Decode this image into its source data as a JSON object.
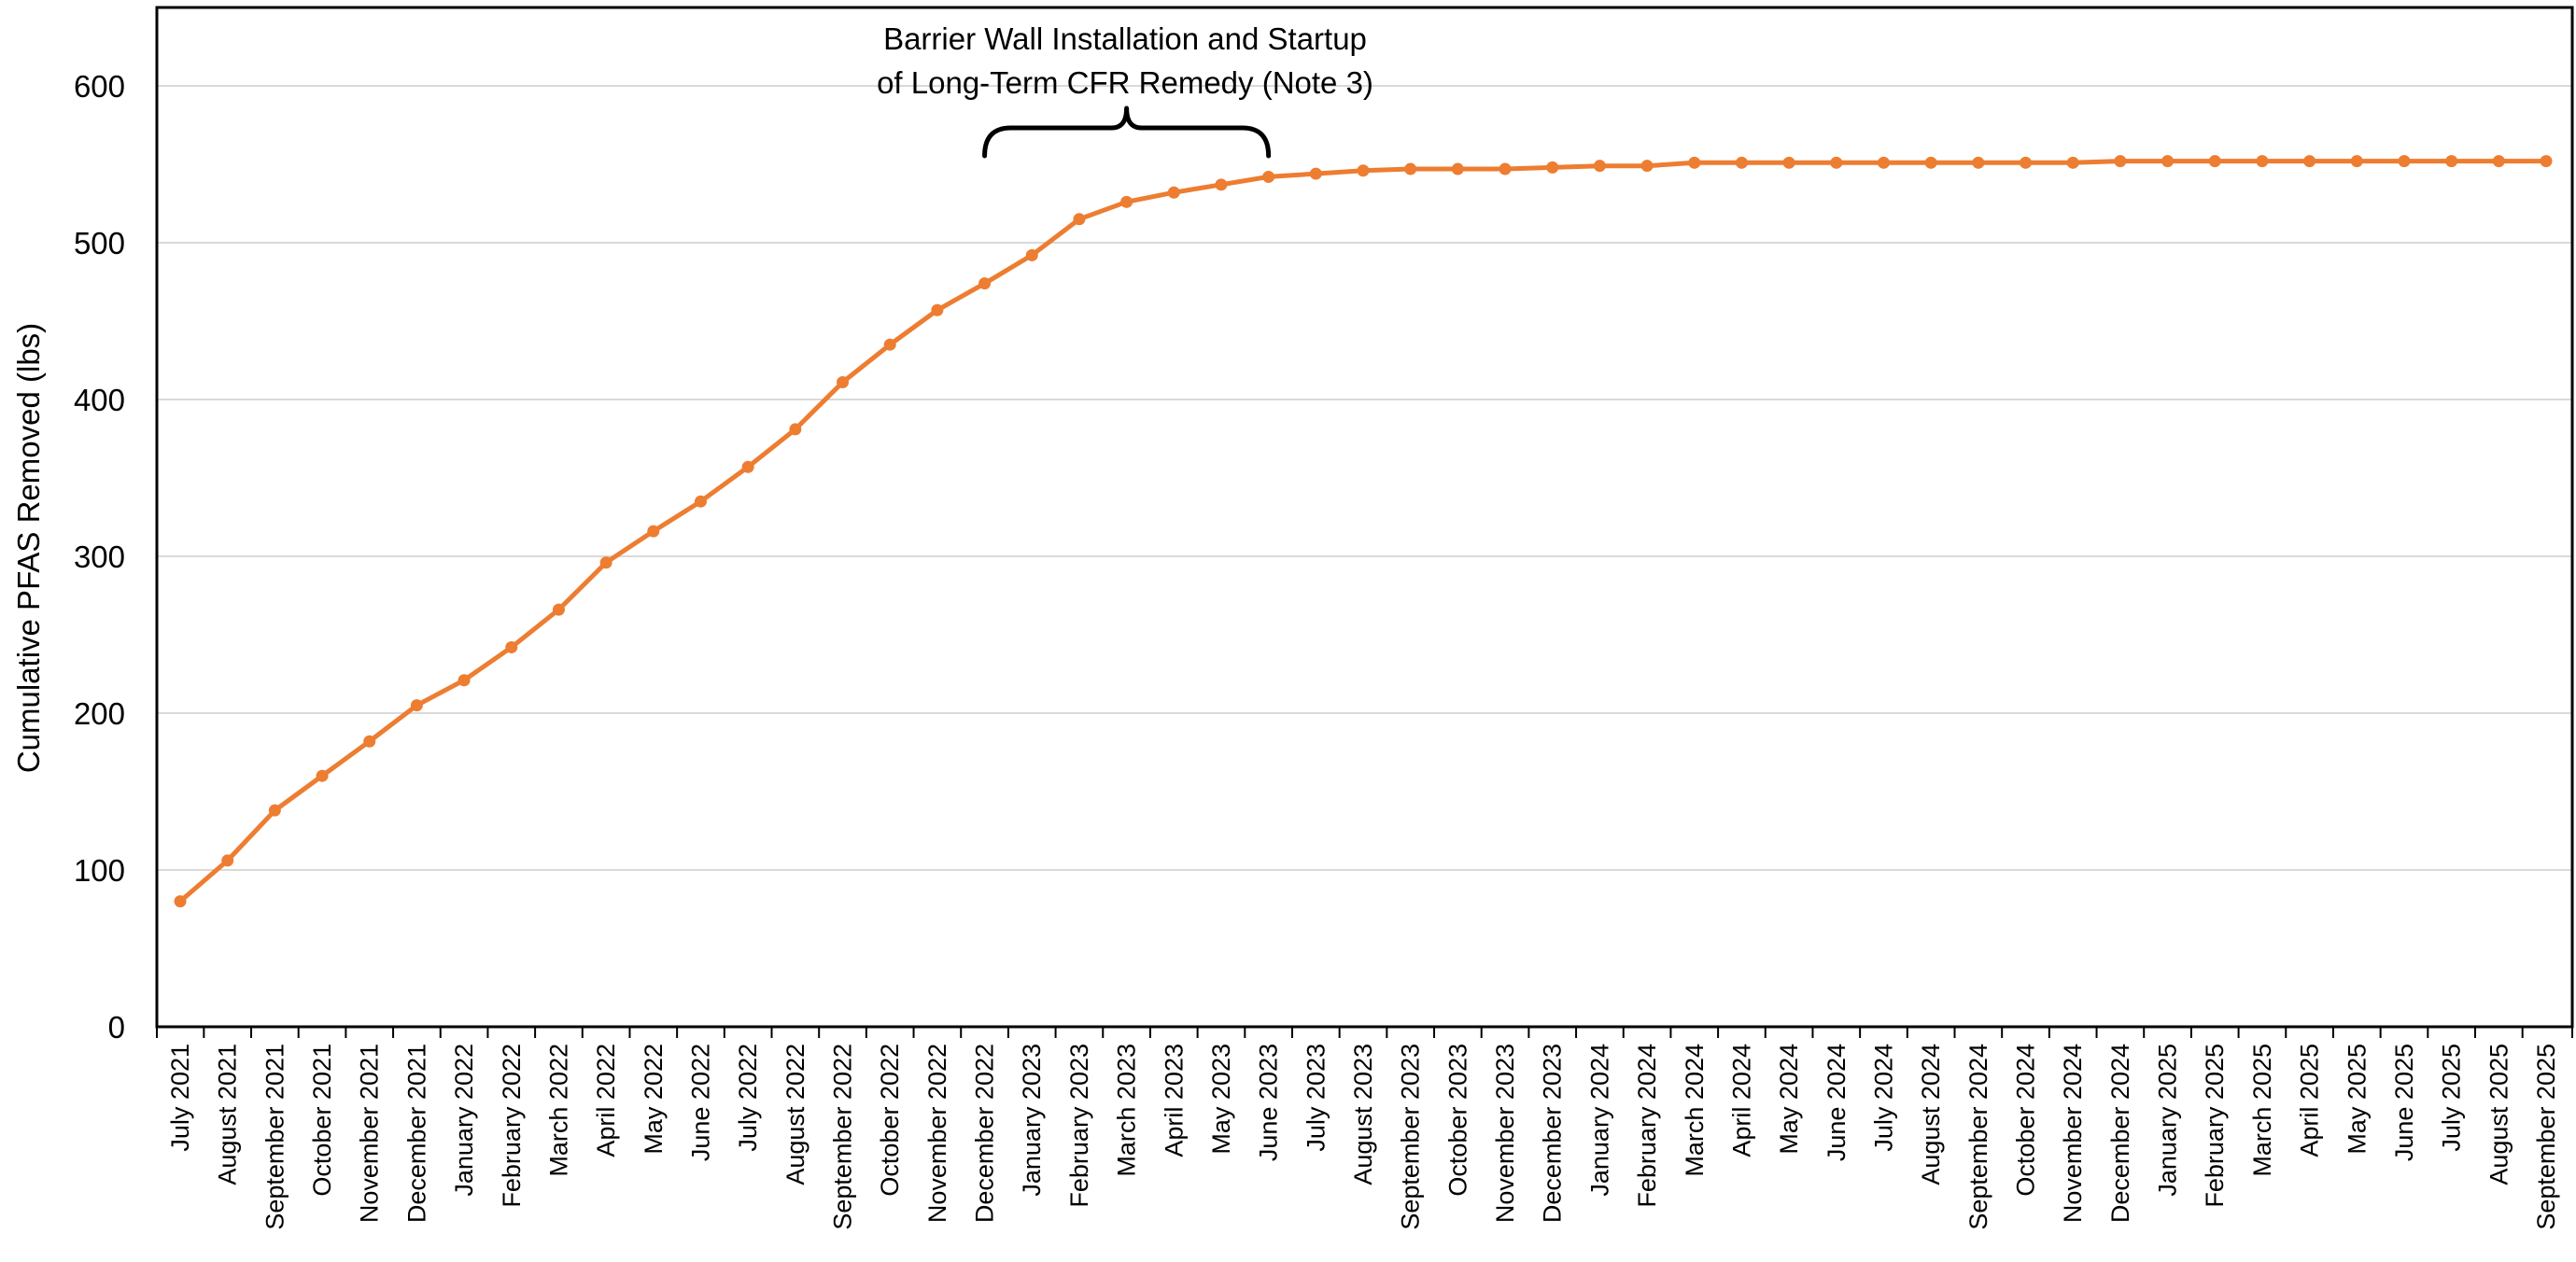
{
  "chart_data": {
    "type": "line",
    "title": "",
    "xlabel": "",
    "ylabel": "Cumulative PFAS Removed (lbs)",
    "ylim": [
      0,
      650
    ],
    "yticks": [
      0,
      100,
      200,
      300,
      400,
      500,
      600
    ],
    "grid": true,
    "legend": "none",
    "line_color": "#ED7D31",
    "x": [
      "July 2021",
      "August 2021",
      "September 2021",
      "October 2021",
      "November 2021",
      "December 2021",
      "January 2022",
      "February 2022",
      "March 2022",
      "April 2022",
      "May 2022",
      "June 2022",
      "July 2022",
      "August 2022",
      "September 2022",
      "October 2022",
      "November 2022",
      "December 2022",
      "January 2023",
      "February 2023",
      "March 2023",
      "April 2023",
      "May 2023",
      "June 2023",
      "July 2023",
      "August 2023",
      "September 2023",
      "October 2023",
      "November 2023",
      "December 2023",
      "January 2024",
      "February 2024",
      "March 2024",
      "April 2024",
      "May 2024",
      "June 2024",
      "July 2024",
      "August 2024",
      "September 2024",
      "October 2024",
      "November 2024",
      "December 2024",
      "January 2025",
      "February 2025",
      "March 2025",
      "April 2025",
      "May 2025",
      "June 2025",
      "July 2025",
      "August 2025",
      "September 2025"
    ],
    "series": [
      {
        "values": [
          80,
          106,
          138,
          160,
          182,
          205,
          221,
          242,
          266,
          296,
          316,
          335,
          357,
          381,
          411,
          435,
          457,
          474,
          492,
          515,
          526,
          532,
          537,
          542,
          544,
          546,
          547,
          547,
          547,
          548,
          549,
          549,
          551,
          551,
          551,
          551,
          551,
          551,
          551,
          551,
          551,
          552,
          552,
          552,
          552,
          552,
          552,
          552,
          552,
          552,
          552
        ]
      }
    ],
    "annotations": [
      {
        "text_lines": [
          "Barrier Wall Installation and Startup",
          "of Long-Term CFR Remedy (Note 3)"
        ],
        "from": "December 2022",
        "to": "June 2023"
      }
    ]
  }
}
